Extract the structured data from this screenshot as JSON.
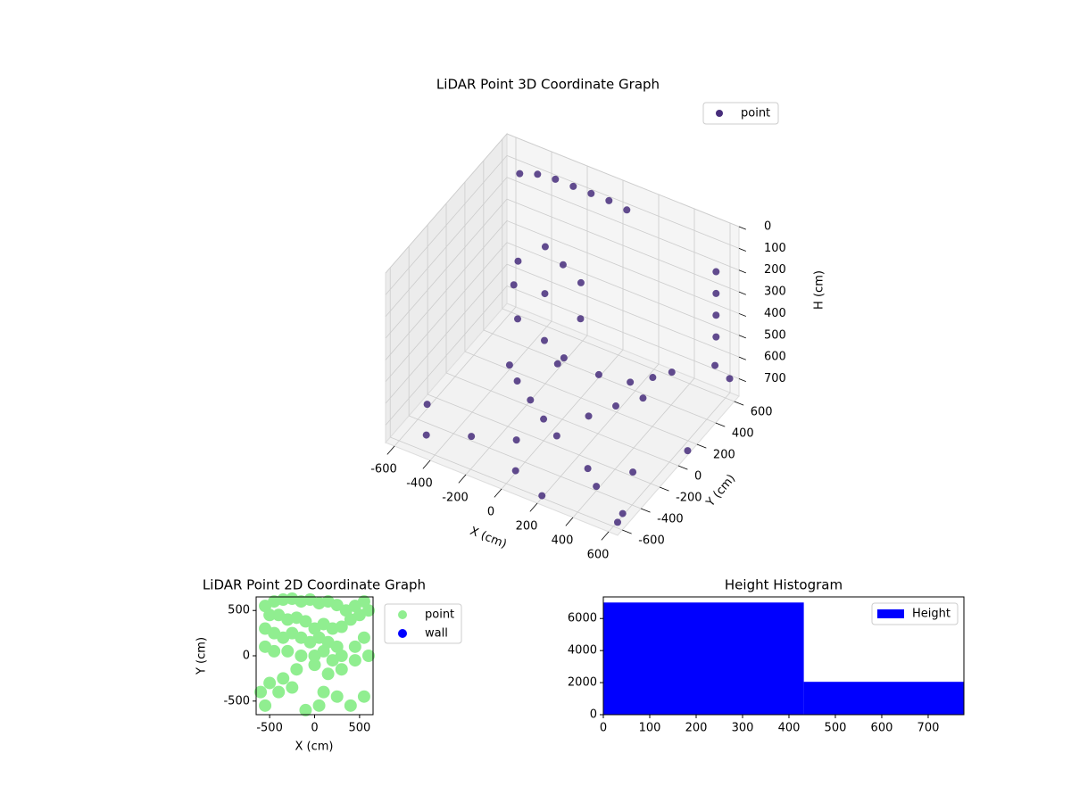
{
  "chart_data": [
    {
      "type": "scatter3d",
      "title": "LiDAR Point 3D Coordinate Graph",
      "xlabel": "X (cm)",
      "ylabel": "Y (cm)",
      "zlabel": "H (cm)",
      "xlim": [
        -650,
        650
      ],
      "ylim": [
        -650,
        650
      ],
      "zlim": [
        0,
        780
      ],
      "z_inverted": true,
      "xticks": [
        -600,
        -400,
        -200,
        0,
        200,
        400,
        600
      ],
      "yticks": [
        -600,
        -400,
        -200,
        0,
        200,
        400,
        600
      ],
      "zticks": [
        0,
        100,
        200,
        300,
        400,
        500,
        600,
        700
      ],
      "legend": "upper right",
      "grid": true,
      "series": [
        {
          "name": "point",
          "color": "#472d7b",
          "x": [
            -500,
            -400,
            -300,
            -200,
            -100,
            0,
            100,
            -200,
            -100,
            0,
            -300,
            -150,
            50,
            -250,
            -100,
            0,
            -350,
            600,
            600,
            600,
            600,
            620,
            650,
            -200,
            -100,
            0,
            100,
            200,
            300,
            400,
            100,
            250,
            350,
            -600,
            -500,
            -300,
            0,
            200,
            400,
            500,
            600,
            -400,
            -200,
            300,
            650,
            -100,
            300,
            650
          ],
          "y": [
            500,
            500,
            500,
            500,
            500,
            500,
            500,
            200,
            200,
            200,
            100,
            100,
            100,
            0,
            0,
            -50,
            150,
            500,
            500,
            500,
            500,
            450,
            550,
            -100,
            -150,
            -200,
            -250,
            -100,
            0,
            100,
            200,
            250,
            300,
            -300,
            -500,
            -400,
            -500,
            -600,
            -400,
            -200,
            -500,
            200,
            400,
            600,
            100,
            -300,
            -300,
            -650
          ],
          "z": [
            60,
            30,
            20,
            20,
            20,
            20,
            30,
            150,
            200,
            250,
            200,
            300,
            350,
            400,
            450,
            500,
            350,
            150,
            250,
            350,
            450,
            550,
            650,
            620,
            650,
            680,
            700,
            650,
            620,
            600,
            640,
            650,
            620,
            760,
            770,
            760,
            770,
            770,
            760,
            760,
            770,
            760,
            760,
            760,
            760,
            760,
            760,
            720
          ]
        }
      ]
    },
    {
      "type": "scatter",
      "title": "LiDAR Point 2D Coordinate Graph",
      "xlabel": "X (cm)",
      "ylabel": "Y (cm)",
      "xlim": [
        -650,
        650
      ],
      "ylim": [
        -650,
        650
      ],
      "xticks": [
        -500,
        0,
        500
      ],
      "yticks": [
        -500,
        0,
        500
      ],
      "legend": "outside right",
      "series": [
        {
          "name": "point",
          "color": "#90ee90",
          "x": [
            -550,
            -450,
            -350,
            -250,
            -150,
            -50,
            50,
            150,
            250,
            350,
            450,
            550,
            -500,
            -400,
            -300,
            -200,
            -100,
            0,
            100,
            200,
            300,
            400,
            500,
            600,
            -550,
            -450,
            -350,
            -250,
            -150,
            -50,
            50,
            150,
            250,
            -550,
            -450,
            -300,
            -150,
            0,
            100,
            200,
            300,
            450,
            550,
            -600,
            -500,
            -350,
            -200,
            0,
            150,
            300,
            450,
            600,
            -550,
            -400,
            -250,
            100,
            250,
            400,
            550,
            -100,
            50
          ],
          "y": [
            550,
            600,
            620,
            630,
            600,
            620,
            580,
            600,
            560,
            500,
            550,
            600,
            450,
            450,
            400,
            420,
            380,
            300,
            350,
            300,
            320,
            400,
            450,
            500,
            300,
            250,
            200,
            250,
            200,
            150,
            200,
            150,
            100,
            100,
            50,
            50,
            0,
            0,
            50,
            -50,
            0,
            100,
            200,
            -400,
            -300,
            -250,
            -150,
            -100,
            -200,
            -150,
            -50,
            0,
            -550,
            -400,
            -350,
            -400,
            -450,
            -550,
            -450,
            -600,
            -550
          ]
        },
        {
          "name": "wall",
          "color": "#0000ff",
          "x": [],
          "y": []
        }
      ]
    },
    {
      "type": "histogram",
      "title": "Height Histogram",
      "bins": [
        0,
        432,
        777
      ],
      "values": [
        7000,
        2050
      ],
      "name": "Height",
      "color": "#0000ff",
      "xlim": [
        0,
        777
      ],
      "ylim": [
        0,
        7350
      ],
      "xticks": [
        0,
        100,
        200,
        300,
        400,
        500,
        600,
        700
      ],
      "yticks": [
        0,
        2000,
        4000,
        6000
      ],
      "legend": "upper right"
    }
  ]
}
